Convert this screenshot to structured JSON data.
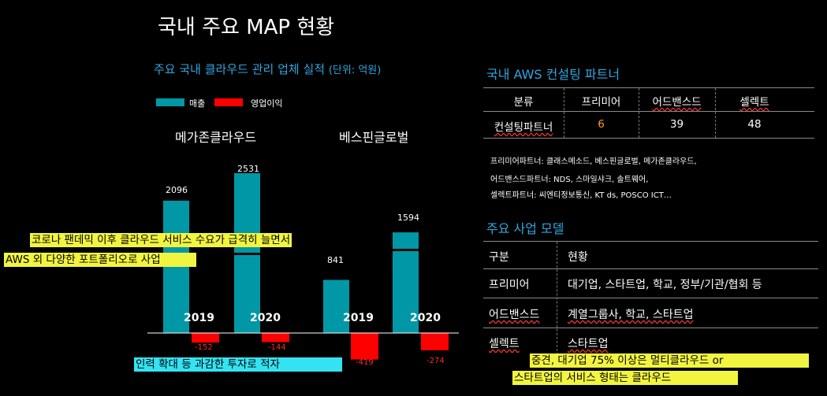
{
  "page_title": "국내 주요 MAP 현황",
  "chart_section": {
    "title": "주요 국내 클라우드 관리 업체 실적",
    "unit": "(단위: 억원)",
    "legend": [
      {
        "label": "매출",
        "color": "#0098a6"
      },
      {
        "label": "영업이익",
        "color": "#ff0000"
      }
    ]
  },
  "chart_data": {
    "type": "bar",
    "groups": [
      {
        "company": "메가존클라우드",
        "years": [
          "2019",
          "2020"
        ],
        "revenue": [
          2096,
          2531
        ],
        "operating_profit": [
          -152,
          -144
        ]
      },
      {
        "company": "베스핀글로벌",
        "years": [
          "2019",
          "2020"
        ],
        "revenue": [
          841,
          1594
        ],
        "operating_profit": [
          -419,
          -274
        ]
      }
    ],
    "value_labels": {
      "revenue": [
        "2096",
        "2531",
        "841",
        "1594"
      ],
      "profit": [
        "-152",
        "-144",
        "-419",
        "-274"
      ]
    },
    "series_colors": {
      "revenue": "#0098a6",
      "operating_profit": "#ff0000"
    }
  },
  "callouts": {
    "covid_line1": "코로나 팬데믹 이후 클라우드 서비스 수요가 급격히 늘면서",
    "covid_line2": "AWS 외 다양한 포트폴리오로 사업",
    "deficit": "인력 확대 등 과감한 투자로 적자",
    "multi_line1": "중견, 대기업 75% 이상은 멀티클라우드 or",
    "multi_line2": "스타트업의 서비스 형태는 클라우드"
  },
  "partners": {
    "title": "국내 AWS 컨설팅 파트너",
    "headers": [
      "분류",
      "프리미어",
      "어드밴스드",
      "셀렉트"
    ],
    "row": {
      "label": "컨설팅파트너",
      "values": [
        "6",
        "39",
        "48"
      ]
    },
    "notes": [
      {
        "label": "프리미어파트너:",
        "text": "클래스메소드, 베스핀글로벌, 메가존클라우드,"
      },
      {
        "label": "어드밴스드파트너:",
        "text": "NDS, 스마일샤크, 솔트웨어,"
      },
      {
        "label": "셀렉트파트너:",
        "text": "씨엔티정보통신, KT ds, POSCO ICT…"
      }
    ]
  },
  "business": {
    "title": "주요 사업 모델",
    "rows": [
      {
        "label": "구분",
        "value": "현황"
      },
      {
        "label": "프리미어",
        "value": "대기업, 스타트업, 학교, 정부/기관/협회 등"
      },
      {
        "label": "어드밴스드",
        "value": "계열그룹사, 학교, 스타트업"
      },
      {
        "label": "셀렉트",
        "value": "스타트업"
      }
    ]
  },
  "colors": {
    "accent_blue": "#2fa6e0",
    "highlight_orange": "#ff9a2a"
  }
}
